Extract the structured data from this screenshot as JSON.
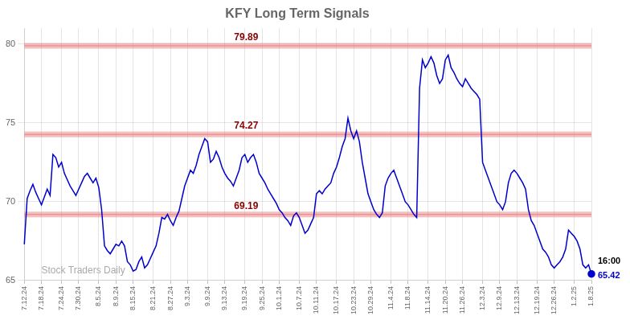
{
  "chart_data": {
    "type": "line",
    "title": "KFY Long Term Signals",
    "categories": [
      "7.12.24",
      null,
      null,
      null,
      null,
      null,
      "7.18.24",
      null,
      null,
      null,
      null,
      null,
      null,
      "7.24.24",
      null,
      null,
      null,
      null,
      null,
      "7.30.24",
      null,
      null,
      null,
      null,
      null,
      null,
      "8.5.24",
      null,
      null,
      null,
      null,
      null,
      "8.9.24",
      null,
      null,
      null,
      null,
      null,
      "8.15.24",
      null,
      null,
      null,
      null,
      null,
      null,
      "8.21.24",
      null,
      null,
      null,
      null,
      null,
      "8.27.24",
      null,
      null,
      null,
      null,
      null,
      "9.3.24",
      null,
      null,
      null,
      null,
      null,
      null,
      "9.9.24",
      null,
      null,
      null,
      null,
      null,
      "9.13.24",
      null,
      null,
      null,
      null,
      null,
      null,
      "9.19.24",
      null,
      null,
      null,
      null,
      null,
      "9.25.24",
      null,
      null,
      null,
      null,
      null,
      "10.1.24",
      null,
      null,
      null,
      null,
      null,
      null,
      "10.7.24",
      null,
      null,
      null,
      null,
      null,
      "10.11.24",
      null,
      null,
      null,
      null,
      null,
      null,
      "10.17.24",
      null,
      null,
      null,
      null,
      null,
      "10.23.24",
      null,
      null,
      null,
      null,
      null,
      "10.29.24",
      null,
      null,
      null,
      null,
      null,
      null,
      "11.4.24",
      null,
      null,
      null,
      null,
      null,
      "11.8.24",
      null,
      null,
      null,
      null,
      null,
      null,
      "11.14.24",
      null,
      null,
      null,
      null,
      null,
      "11.20.24",
      null,
      null,
      null,
      null,
      null,
      "11.26.24",
      null,
      null,
      null,
      null,
      null,
      null,
      "12.3.24",
      null,
      null,
      null,
      null,
      null,
      "12.9.24",
      null,
      null,
      null,
      null,
      null,
      "12.13.24",
      null,
      null,
      null,
      null,
      null,
      null,
      "12.19.24",
      null,
      null,
      null,
      null,
      null,
      "12.26.24",
      null,
      null,
      null,
      null,
      null,
      null,
      "1.2.25",
      null,
      null,
      null,
      null,
      null,
      "1.8.25"
    ],
    "series": [
      {
        "name": "KFY",
        "color": "#0000cc",
        "values": [
          67.3,
          70.2,
          70.7,
          71.1,
          70.6,
          70.2,
          69.8,
          70.3,
          70.8,
          70.4,
          73.0,
          72.8,
          72.2,
          72.5,
          71.8,
          71.4,
          71.0,
          70.7,
          70.4,
          70.8,
          71.2,
          71.6,
          71.8,
          71.5,
          71.2,
          71.5,
          70.9,
          69.5,
          67.2,
          66.9,
          66.7,
          67.0,
          67.3,
          67.2,
          67.5,
          67.2,
          66.2,
          66.0,
          65.6,
          65.7,
          66.2,
          66.5,
          65.8,
          66.0,
          66.4,
          66.8,
          67.2,
          68.0,
          69.0,
          68.9,
          69.2,
          68.8,
          68.5,
          69.0,
          69.4,
          70.2,
          71.0,
          71.5,
          72.0,
          71.8,
          72.3,
          73.0,
          73.5,
          74.0,
          73.8,
          72.5,
          72.7,
          73.2,
          72.8,
          72.2,
          71.8,
          71.5,
          71.3,
          71.0,
          71.5,
          72.0,
          72.8,
          73.0,
          72.5,
          72.8,
          73.0,
          72.5,
          71.8,
          71.5,
          71.2,
          70.8,
          70.5,
          70.2,
          69.9,
          69.5,
          69.3,
          69.0,
          68.8,
          68.5,
          69.1,
          69.3,
          69.0,
          68.5,
          68.0,
          68.2,
          68.6,
          69.0,
          70.5,
          70.7,
          70.5,
          70.8,
          71.0,
          71.2,
          71.8,
          72.2,
          72.8,
          73.5,
          74.0,
          75.3,
          74.5,
          74.0,
          74.5,
          73.8,
          72.5,
          71.5,
          70.5,
          70.0,
          69.5,
          69.2,
          69.0,
          69.3,
          71.0,
          71.5,
          71.8,
          72.0,
          71.5,
          71.0,
          70.5,
          70.0,
          69.8,
          69.5,
          69.2,
          69.0,
          77.2,
          79.0,
          78.5,
          78.8,
          79.2,
          78.8,
          78.0,
          77.5,
          77.8,
          79.0,
          79.3,
          78.5,
          78.2,
          77.8,
          77.5,
          77.3,
          77.8,
          77.5,
          77.2,
          77.0,
          76.8,
          76.5,
          72.5,
          72.0,
          71.5,
          71.0,
          70.5,
          70.0,
          69.8,
          69.5,
          70.0,
          71.2,
          71.8,
          72.0,
          71.8,
          71.5,
          71.2,
          70.8,
          69.5,
          68.8,
          68.5,
          68.0,
          67.5,
          67.0,
          66.8,
          66.5,
          66.0,
          65.8,
          66.0,
          66.2,
          66.5,
          67.0,
          68.2,
          68.0,
          67.8,
          67.5,
          67.0,
          66.0,
          65.8,
          66.0,
          65.42
        ]
      }
    ],
    "ylim": [
      65,
      81
    ],
    "yticks": [
      65,
      70,
      75,
      80
    ],
    "grid": true,
    "annotations": {
      "hlines": [
        {
          "y": 79.89,
          "text": "79.89",
          "color": "#8b0000",
          "line_color": "#e88080"
        },
        {
          "y": 74.27,
          "text": "74.27",
          "color": "#8b0000",
          "line_color": "#e88080"
        },
        {
          "y": 69.19,
          "text": "69.19",
          "color": "#8b0000",
          "line_color": "#e88080"
        }
      ],
      "last_point": [
        {
          "text": "16:00",
          "color": "#000000"
        },
        {
          "text": "65.42",
          "color": "#0000cc"
        }
      ],
      "watermark": "Stock Traders Daily"
    }
  }
}
